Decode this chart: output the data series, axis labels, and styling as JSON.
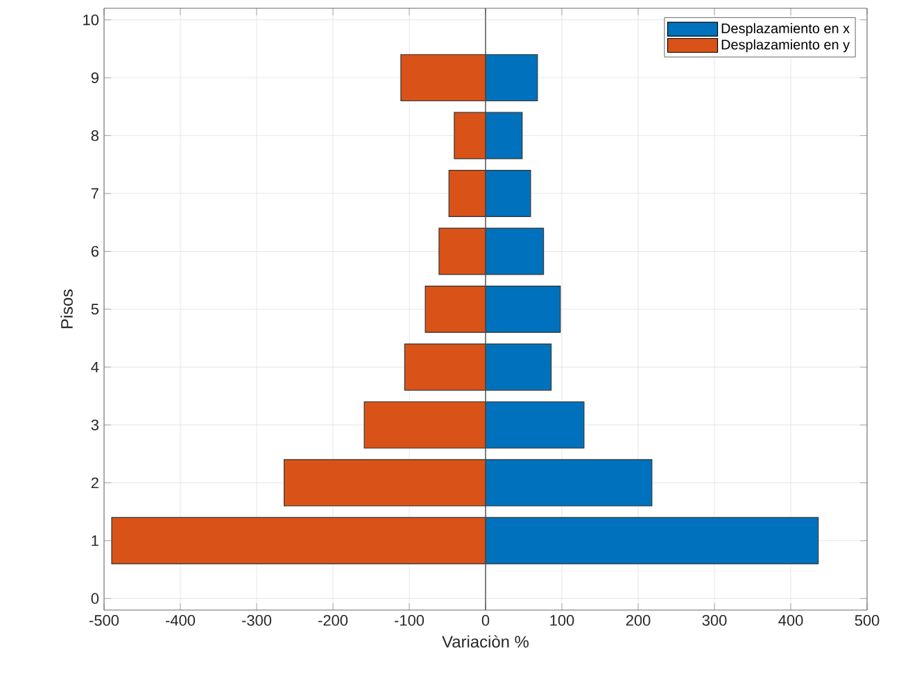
{
  "chart_data": {
    "type": "bar",
    "orientation": "horizontal",
    "stacked": true,
    "xlabel": "Variaciòn %",
    "ylabel": "Pisos",
    "x": [
      1,
      2,
      3,
      4,
      5,
      6,
      7,
      8,
      9
    ],
    "series": [
      {
        "name": "Desplazamiento en x",
        "color": "#0072bd",
        "values": [
          436,
          218,
          129,
          86,
          98,
          76,
          59,
          48,
          68
        ]
      },
      {
        "name": "Desplazamiento en y",
        "color": "#d95319",
        "values": [
          -490,
          -264,
          -159,
          -106,
          -79,
          -61,
          -48,
          -41,
          -111
        ]
      }
    ],
    "xlim": [
      -500,
      500
    ],
    "xticks": [
      -500,
      -400,
      -300,
      -200,
      -100,
      0,
      100,
      200,
      300,
      400,
      500
    ],
    "ylim": [
      -0.2,
      10.2
    ],
    "yticks": [
      0,
      1,
      2,
      3,
      4,
      5,
      6,
      7,
      8,
      9,
      10
    ],
    "grid": true,
    "legend": "top right"
  }
}
